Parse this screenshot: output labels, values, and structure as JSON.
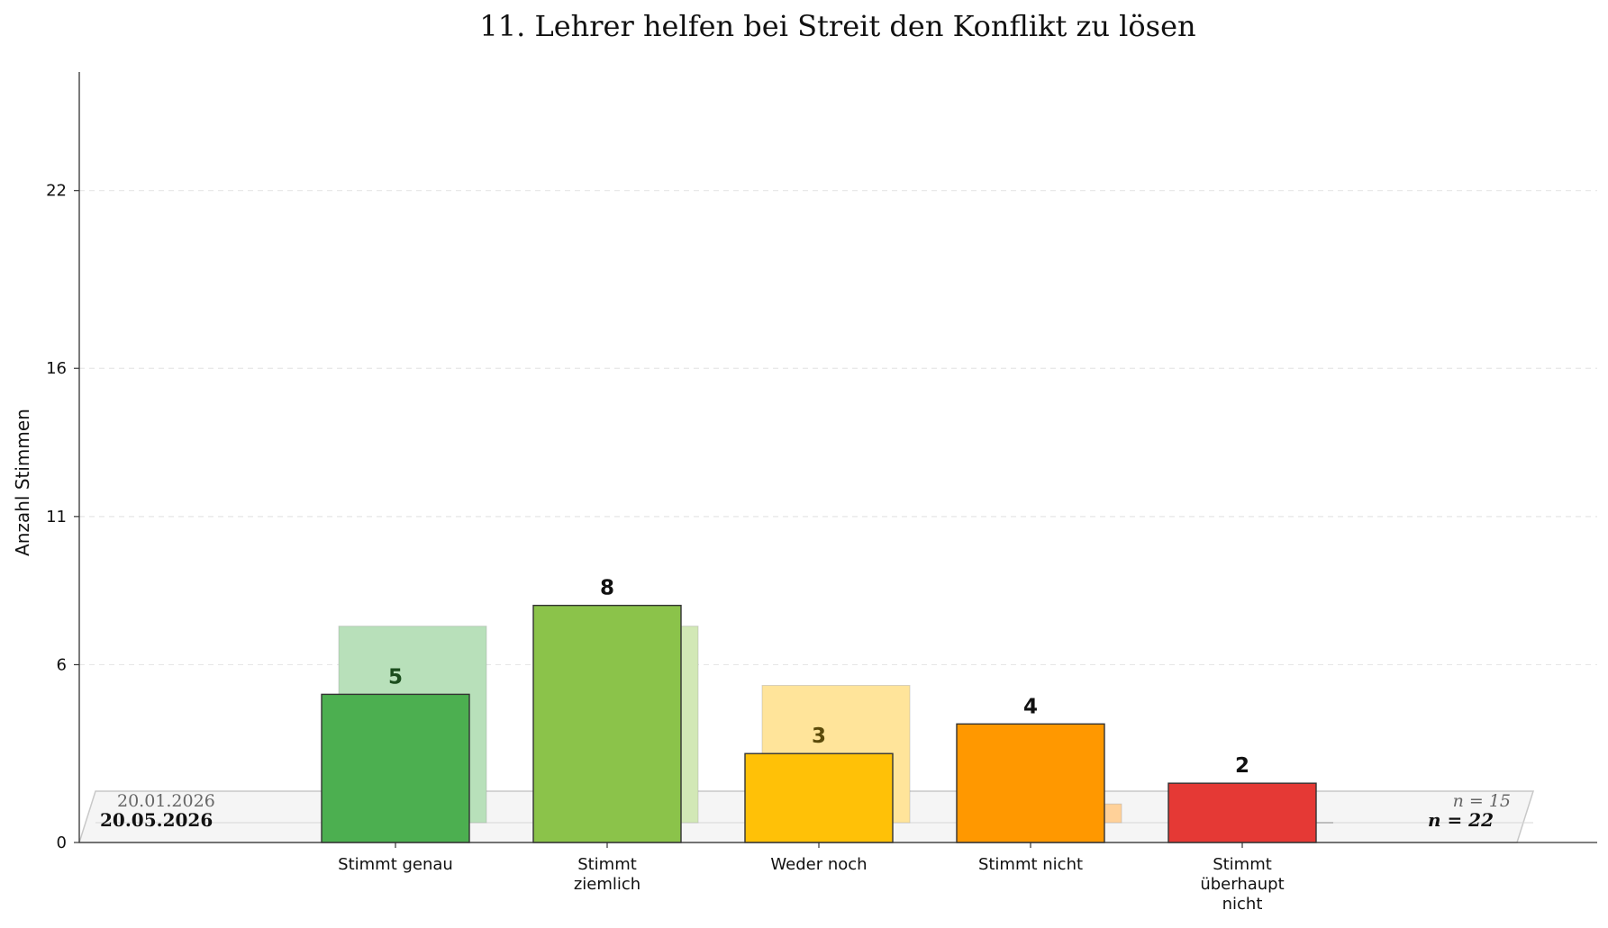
{
  "chart_data": {
    "type": "bar",
    "title": "11. Lehrer helfen bei Streit den Konflikt zu lösen",
    "xlabel": "",
    "ylabel": "Anzahl Stimmen",
    "ylim": [
      0,
      26
    ],
    "yticks": [
      "0",
      "6",
      "11",
      "16",
      "22"
    ],
    "ytick_values": [
      0,
      6,
      11,
      16,
      22
    ],
    "grid": "horizontal dashed",
    "categories": [
      [
        "Stimmt genau"
      ],
      [
        "Stimmt",
        "ziemlich"
      ],
      [
        "Weder noch"
      ],
      [
        "Stimmt nicht"
      ],
      [
        "Stimmt",
        "überhaupt",
        "nicht"
      ]
    ],
    "series": [
      {
        "name": "20.05.2026",
        "n_label": "n = 22",
        "values": [
          5,
          8,
          3,
          4,
          2
        ],
        "labels": [
          "5",
          "8",
          "3",
          "4",
          "2"
        ],
        "colors": [
          "#4caf50",
          "#8bc34a",
          "#ffc107",
          "#ff9800",
          "#e53935"
        ]
      },
      {
        "name": "20.01.2026",
        "n_label": "n = 15",
        "values": [
          7.3,
          7.3,
          5.3,
          1.3,
          0
        ],
        "colors": [
          "#b8e0ba",
          "#d2e8b6",
          "#ffe49a",
          "#ffd199",
          "#f5b5b3"
        ]
      }
    ],
    "value_label_colors": [
      "#1b4d1d",
      "#111111",
      "#5b4a0a",
      "#111111",
      "#111111"
    ],
    "legend_placement": "bottom band"
  }
}
